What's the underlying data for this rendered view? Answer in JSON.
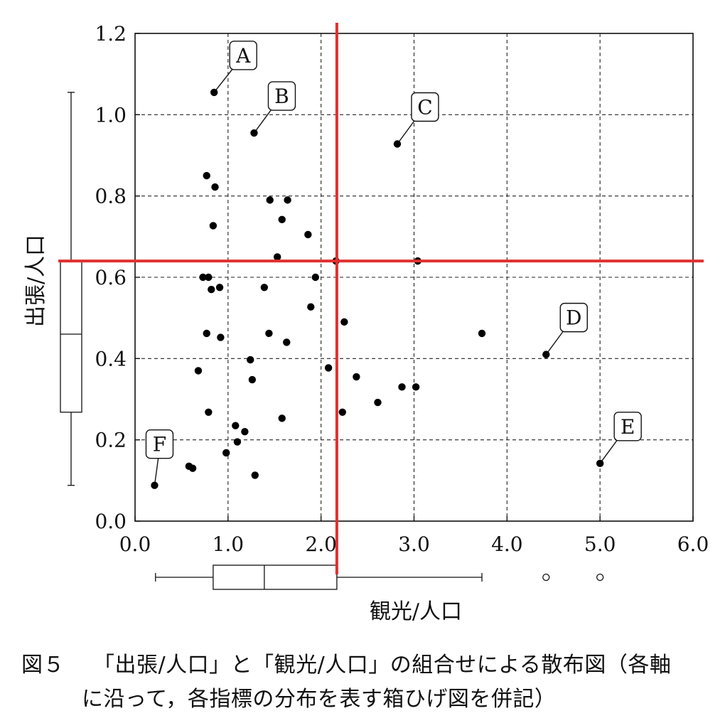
{
  "chart_data": {
    "type": "scatter",
    "xlabel": "観光/人口",
    "ylabel": "出張/人口",
    "xlim": [
      0.0,
      6.0
    ],
    "ylim": [
      0.0,
      1.2
    ],
    "x_ticks": [
      "0.0",
      "1.0",
      "2.0",
      "3.0",
      "4.0",
      "5.0",
      "6.0"
    ],
    "y_ticks": [
      "0.0",
      "0.2",
      "0.4",
      "0.6",
      "0.8",
      "1.0",
      "1.2"
    ],
    "grid": true,
    "reference_lines": {
      "x": 2.17,
      "y": 0.64,
      "color": "#e03030"
    },
    "labeled_points": [
      {
        "label": "A",
        "x": 0.85,
        "y": 1.055
      },
      {
        "label": "B",
        "x": 1.28,
        "y": 0.955
      },
      {
        "label": "C",
        "x": 2.82,
        "y": 0.928
      },
      {
        "label": "D",
        "x": 4.42,
        "y": 0.41
      },
      {
        "label": "E",
        "x": 5.0,
        "y": 0.142
      },
      {
        "label": "F",
        "x": 0.21,
        "y": 0.088
      }
    ],
    "points": [
      {
        "x": 0.77,
        "y": 0.85
      },
      {
        "x": 0.86,
        "y": 0.822
      },
      {
        "x": 1.45,
        "y": 0.79
      },
      {
        "x": 1.64,
        "y": 0.79
      },
      {
        "x": 1.58,
        "y": 0.742
      },
      {
        "x": 0.84,
        "y": 0.727
      },
      {
        "x": 1.86,
        "y": 0.705
      },
      {
        "x": 1.53,
        "y": 0.65
      },
      {
        "x": 2.16,
        "y": 0.64
      },
      {
        "x": 3.04,
        "y": 0.64
      },
      {
        "x": 0.73,
        "y": 0.6
      },
      {
        "x": 0.79,
        "y": 0.6
      },
      {
        "x": 1.94,
        "y": 0.6
      },
      {
        "x": 0.91,
        "y": 0.575
      },
      {
        "x": 1.39,
        "y": 0.575
      },
      {
        "x": 0.82,
        "y": 0.57
      },
      {
        "x": 1.89,
        "y": 0.527
      },
      {
        "x": 2.25,
        "y": 0.49
      },
      {
        "x": 0.77,
        "y": 0.462
      },
      {
        "x": 1.44,
        "y": 0.462
      },
      {
        "x": 3.73,
        "y": 0.462
      },
      {
        "x": 0.92,
        "y": 0.452
      },
      {
        "x": 1.63,
        "y": 0.44
      },
      {
        "x": 1.24,
        "y": 0.397
      },
      {
        "x": 2.08,
        "y": 0.377
      },
      {
        "x": 0.68,
        "y": 0.37
      },
      {
        "x": 2.38,
        "y": 0.355
      },
      {
        "x": 1.26,
        "y": 0.348
      },
      {
        "x": 2.87,
        "y": 0.33
      },
      {
        "x": 3.02,
        "y": 0.33
      },
      {
        "x": 2.61,
        "y": 0.292
      },
      {
        "x": 0.79,
        "y": 0.268
      },
      {
        "x": 2.23,
        "y": 0.268
      },
      {
        "x": 1.58,
        "y": 0.253
      },
      {
        "x": 1.08,
        "y": 0.235
      },
      {
        "x": 1.18,
        "y": 0.22
      },
      {
        "x": 1.1,
        "y": 0.195
      },
      {
        "x": 0.98,
        "y": 0.168
      },
      {
        "x": 0.58,
        "y": 0.135
      },
      {
        "x": 0.62,
        "y": 0.13
      },
      {
        "x": 1.29,
        "y": 0.113
      }
    ],
    "x_boxplot": {
      "whisker_low": 0.22,
      "q1": 0.84,
      "median": 1.39,
      "q3": 2.17,
      "whisker_high": 3.73,
      "outliers": [
        4.42,
        5.0
      ]
    },
    "y_boxplot": {
      "whisker_low": 0.088,
      "q1": 0.268,
      "median": 0.46,
      "q3": 0.64,
      "whisker_high": 1.055
    }
  },
  "caption": {
    "fig_label": "図５",
    "line1": "「出張/人口」と「観光/人口」の組合せによる散布図（各軸",
    "line2": "に沿って，各指標の分布を表す箱ひげ図を併記）"
  }
}
